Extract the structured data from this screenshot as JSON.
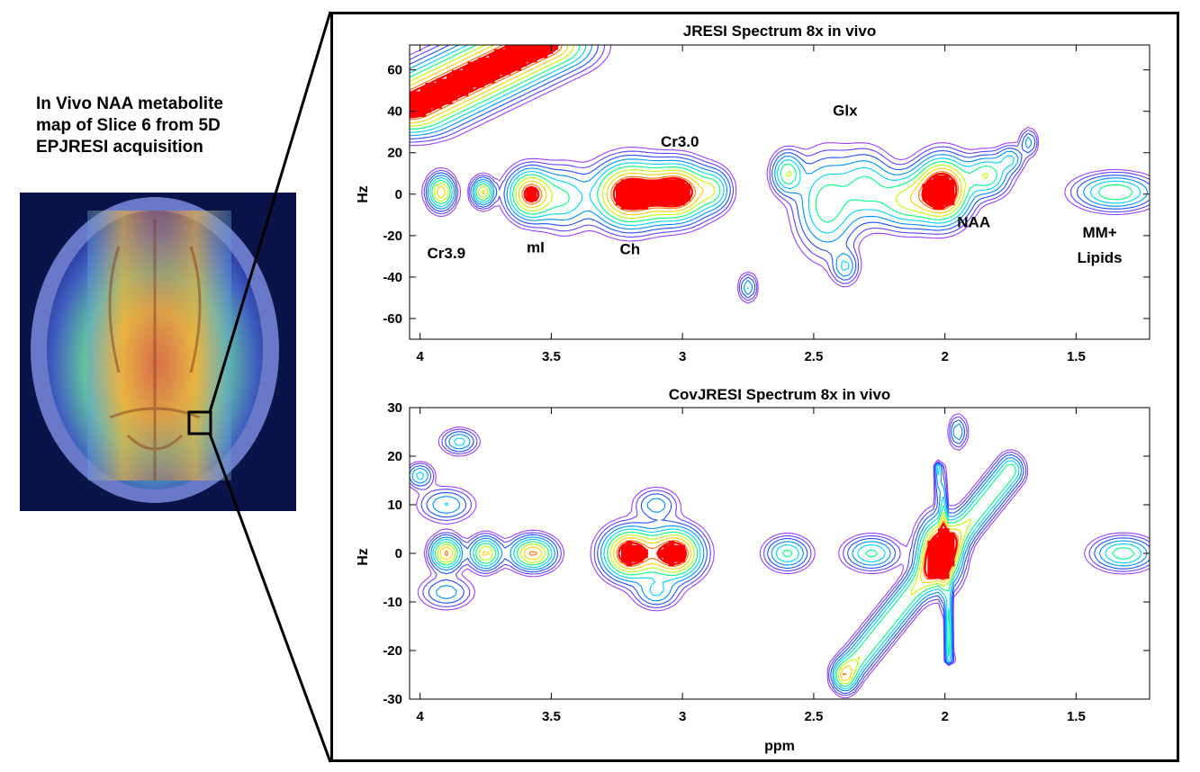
{
  "caption": "In Vivo NAA metabolite\nmap of Slice 6 from 5D\nEPJRESI acquisition",
  "colors": {
    "contour_levels": [
      "#a040ff",
      "#6040ff",
      "#2050ff",
      "#0090ff",
      "#00d0ff",
      "#00ff80",
      "#c0ff00",
      "#ffd000",
      "#ff7000",
      "#ff0000"
    ],
    "brain_bg": "#0a1448"
  },
  "chart_data": [
    {
      "type": "heatmap",
      "title": "JRESI Spectrum 8x in vivo",
      "xlabel": "",
      "ylabel": "Hz",
      "xlim": [
        4.04,
        1.22
      ],
      "ylim": [
        -70,
        72
      ],
      "xticks": [
        4,
        3.5,
        3,
        2.5,
        2,
        1.5
      ],
      "yticks": [
        60,
        40,
        20,
        0,
        -20,
        -40,
        -60
      ],
      "peak_labels": [
        {
          "text": "Cr3.9",
          "ppm": 3.9,
          "hz": -31
        },
        {
          "text": "mI",
          "ppm": 3.56,
          "hz": -28
        },
        {
          "text": "Ch",
          "ppm": 3.2,
          "hz": -29
        },
        {
          "text": "Cr3.0",
          "ppm": 3.01,
          "hz": 23
        },
        {
          "text": "Glx",
          "ppm": 2.38,
          "hz": 38
        },
        {
          "text": "NAA",
          "ppm": 1.89,
          "hz": -16
        },
        {
          "text": "MM+",
          "ppm": 1.41,
          "hz": -21
        },
        {
          "text": "Lipids",
          "ppm": 1.41,
          "hz": -33
        }
      ],
      "peaks": [
        {
          "ppm": 3.92,
          "hz": 1,
          "amp": 0.9,
          "sx": 0.03,
          "sy": 5
        },
        {
          "ppm": 3.76,
          "hz": 1,
          "amp": 0.8,
          "sx": 0.025,
          "sy": 4
        },
        {
          "ppm": 3.58,
          "hz": 0,
          "amp": 1.1,
          "sx": 0.05,
          "sy": 7
        },
        {
          "ppm": 3.45,
          "hz": -2,
          "amp": 0.45,
          "sx": 0.06,
          "sy": 9
        },
        {
          "ppm": 3.2,
          "hz": 0,
          "amp": 1.35,
          "sx": 0.08,
          "sy": 9
        },
        {
          "ppm": 3.02,
          "hz": 1,
          "amp": 1.3,
          "sx": 0.07,
          "sy": 8
        },
        {
          "ppm": 2.88,
          "hz": 2,
          "amp": 0.45,
          "sx": 0.04,
          "sy": 6
        },
        {
          "ppm": 2.6,
          "hz": 10,
          "amp": 0.6,
          "sx": 0.035,
          "sy": 6
        },
        {
          "ppm": 2.45,
          "hz": -5,
          "amp": 0.55,
          "sx": 0.07,
          "sy": 14
        },
        {
          "ppm": 2.3,
          "hz": 4,
          "amp": 0.45,
          "sx": 0.06,
          "sy": 10
        },
        {
          "ppm": 2.15,
          "hz": -3,
          "amp": 0.6,
          "sx": 0.07,
          "sy": 8
        },
        {
          "ppm": 2.01,
          "hz": 2,
          "amp": 1.45,
          "sx": 0.06,
          "sy": 9
        },
        {
          "ppm": 1.84,
          "hz": 9,
          "amp": 0.6,
          "sx": 0.05,
          "sy": 6
        },
        {
          "ppm": 1.75,
          "hz": 17,
          "amp": 0.35,
          "sx": 0.03,
          "sy": 4
        },
        {
          "ppm": 1.35,
          "hz": 1,
          "amp": 0.6,
          "sx": 0.09,
          "sy": 5
        },
        {
          "ppm": 2.75,
          "hz": -45,
          "amp": 0.35,
          "sx": 0.02,
          "sy": 4
        },
        {
          "ppm": 2.38,
          "hz": -35,
          "amp": 0.35,
          "sx": 0.03,
          "sy": 5
        },
        {
          "ppm": 1.68,
          "hz": 25,
          "amp": 0.3,
          "sx": 0.02,
          "sy": 4
        }
      ],
      "ridges": [
        {
          "ppm0": 4.04,
          "hz0": 42,
          "ppm1": 3.55,
          "hz1": 72,
          "amp": 1.25,
          "width": 7
        }
      ]
    },
    {
      "type": "heatmap",
      "title": "CovJRESI Spectrum 8x in vivo",
      "xlabel": "ppm",
      "ylabel": "Hz",
      "xlim": [
        4.04,
        1.22
      ],
      "ylim": [
        -30,
        30
      ],
      "xticks": [
        4,
        3.5,
        3,
        2.5,
        2,
        1.5
      ],
      "yticks": [
        30,
        20,
        10,
        0,
        -10,
        -20,
        -30
      ],
      "peaks": [
        {
          "ppm": 3.9,
          "hz": 0,
          "amp": 0.95,
          "sx": 0.035,
          "sy": 2
        },
        {
          "ppm": 3.75,
          "hz": 0,
          "amp": 0.8,
          "sx": 0.035,
          "sy": 2
        },
        {
          "ppm": 3.57,
          "hz": 0,
          "amp": 0.95,
          "sx": 0.05,
          "sy": 2
        },
        {
          "ppm": 3.2,
          "hz": 0,
          "amp": 1.3,
          "sx": 0.06,
          "sy": 3
        },
        {
          "ppm": 3.03,
          "hz": 0,
          "amp": 1.3,
          "sx": 0.06,
          "sy": 3
        },
        {
          "ppm": 2.6,
          "hz": 0,
          "amp": 0.5,
          "sx": 0.05,
          "sy": 2
        },
        {
          "ppm": 2.28,
          "hz": 0,
          "amp": 0.5,
          "sx": 0.06,
          "sy": 2
        },
        {
          "ppm": 2.02,
          "hz": 0,
          "amp": 1.45,
          "sx": 0.045,
          "sy": 4
        },
        {
          "ppm": 1.32,
          "hz": 0,
          "amp": 0.55,
          "sx": 0.07,
          "sy": 2
        },
        {
          "ppm": 3.9,
          "hz": 10,
          "amp": 0.35,
          "sx": 0.06,
          "sy": 2
        },
        {
          "ppm": 3.9,
          "hz": -8,
          "amp": 0.3,
          "sx": 0.06,
          "sy": 2
        },
        {
          "ppm": 3.85,
          "hz": 23,
          "amp": 0.4,
          "sx": 0.04,
          "sy": 1.5
        },
        {
          "ppm": 4.0,
          "hz": 16,
          "amp": 0.4,
          "sx": 0.03,
          "sy": 1.5
        },
        {
          "ppm": 3.1,
          "hz": 10,
          "amp": 0.3,
          "sx": 0.05,
          "sy": 2
        },
        {
          "ppm": 3.1,
          "hz": -8,
          "amp": 0.35,
          "sx": 0.05,
          "sy": 2
        },
        {
          "ppm": 1.95,
          "hz": 25,
          "amp": 0.35,
          "sx": 0.02,
          "sy": 2
        },
        {
          "ppm": 2.38,
          "hz": -25,
          "amp": 0.35,
          "sx": 0.025,
          "sy": 2
        }
      ],
      "ridges": [
        {
          "ppm0": 2.38,
          "hz0": -25,
          "ppm1": 1.75,
          "hz1": 17,
          "amp": 0.6,
          "width": 1.5
        },
        {
          "ppm0": 2.02,
          "hz0": 18,
          "ppm1": 1.98,
          "hz1": -22,
          "amp": 0.55,
          "width": 0.02
        }
      ]
    }
  ]
}
